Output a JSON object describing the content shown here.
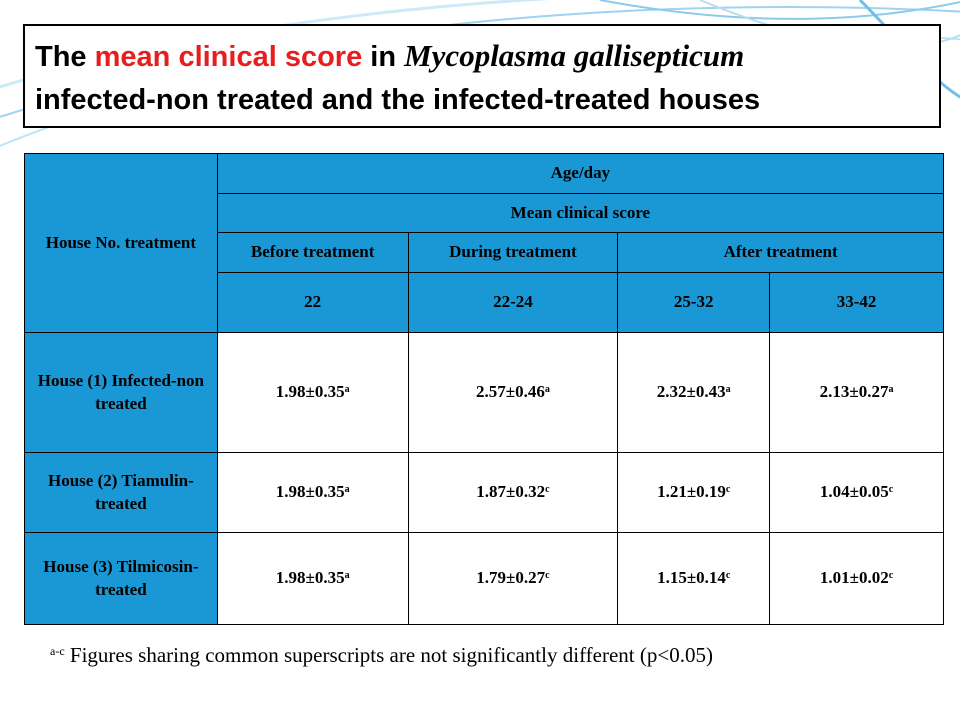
{
  "title": {
    "line1_prefix": "The ",
    "line1_highlight": "mean clinical score",
    "line1_mid": " in ",
    "line1_italic": "Mycoplasma gallisepticum",
    "line2": "infected-non treated and the infected-treated houses",
    "highlight_color": "#e81e1e"
  },
  "table": {
    "corner_label": "House No. treatment",
    "age_label": "Age/day",
    "score_label": "Mean clinical score",
    "phases": [
      "Before treatment",
      "During treatment",
      "After treatment"
    ],
    "ages": [
      "22",
      "22-24",
      "25-32",
      "33-42"
    ],
    "rows": [
      {
        "label": "House (1) Infected-non treated",
        "cells": [
          {
            "v": "1.98±0.35",
            "s": "a"
          },
          {
            "v": "2.57±0.46",
            "s": "a"
          },
          {
            "v": "2.32±0.43",
            "s": "a"
          },
          {
            "v": "2.13±0.27",
            "s": "a"
          }
        ]
      },
      {
        "label": "House (2) Tiamulin-treated",
        "cells": [
          {
            "v": "1.98±0.35",
            "s": "a"
          },
          {
            "v": "1.87±0.32",
            "s": "c"
          },
          {
            "v": "1.21±0.19",
            "s": "c"
          },
          {
            "v": "1.04±0.05",
            "s": "c"
          }
        ]
      },
      {
        "label": "House (3) Tilmicosin-treated",
        "cells": [
          {
            "v": "1.98±0.35",
            "s": "a"
          },
          {
            "v": "1.79±0.27",
            "s": "c"
          },
          {
            "v": "1.15±0.14",
            "s": "c"
          },
          {
            "v": "1.01±0.02",
            "s": "c"
          }
        ]
      }
    ],
    "header_color": "#1a98d5"
  },
  "footnote": {
    "superscript": "a-c",
    "text": " Figures sharing common superscripts are not significantly different (p<0.05)"
  }
}
